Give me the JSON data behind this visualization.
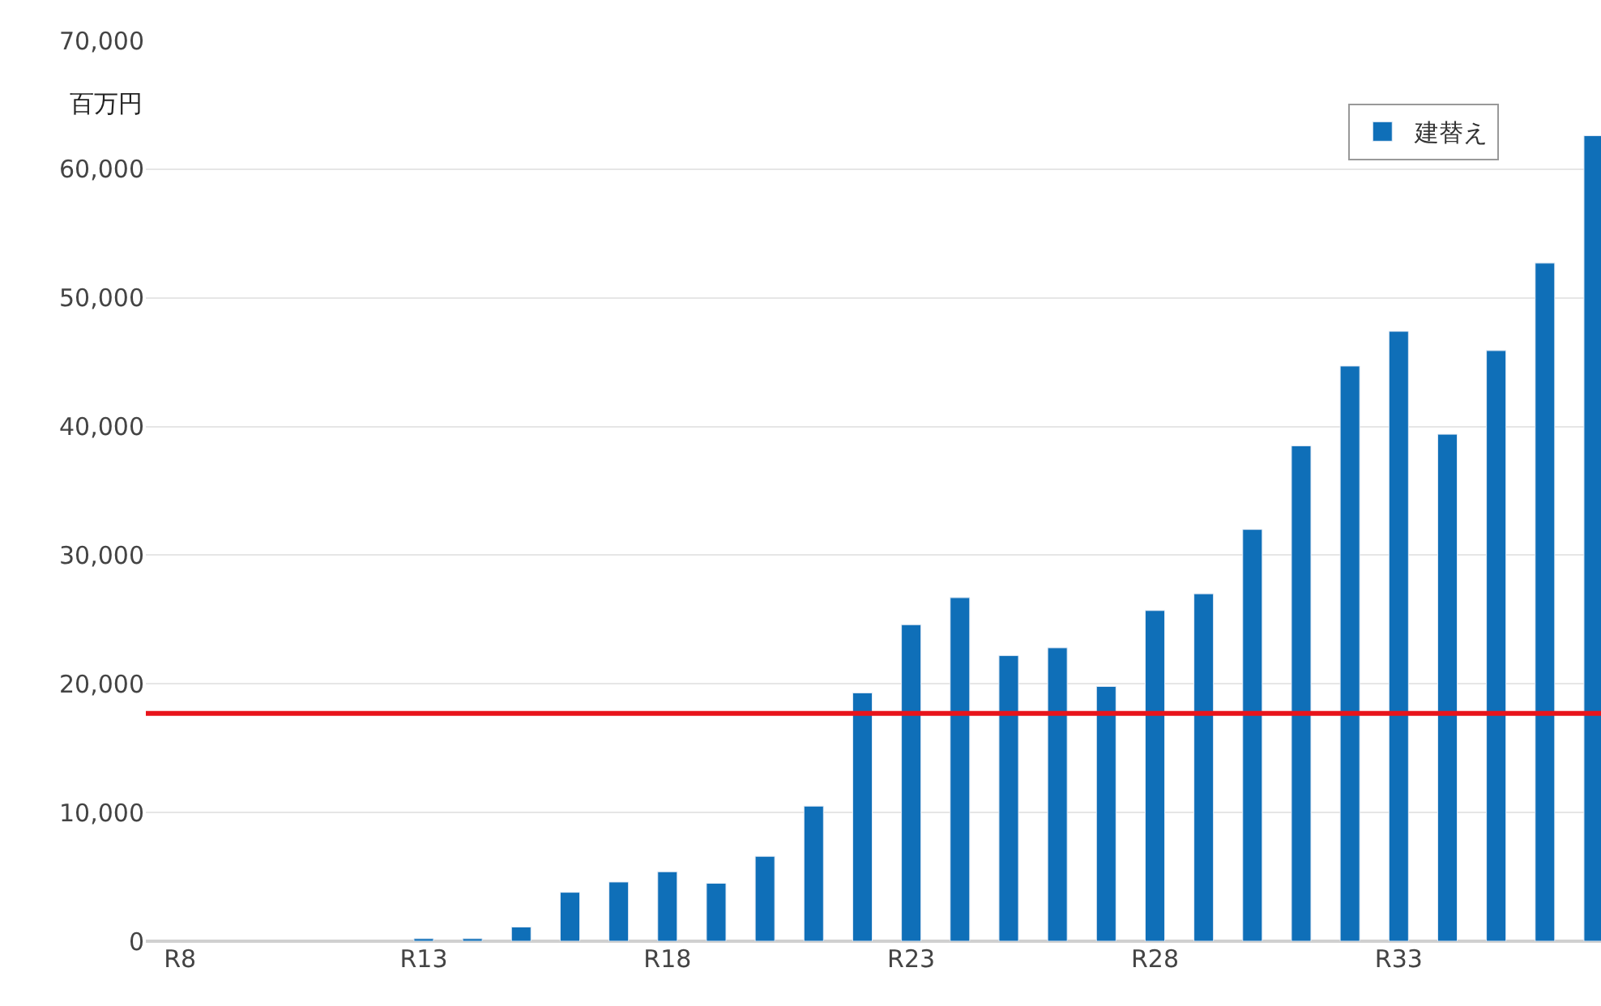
{
  "chart_data": {
    "type": "bar",
    "ylabel": "百万円",
    "categories": [
      "R8",
      null,
      null,
      null,
      null,
      "R13",
      null,
      null,
      null,
      null,
      "R18",
      null,
      null,
      null,
      null,
      "R23",
      null,
      null,
      null,
      null,
      "R28",
      null,
      null,
      null,
      null,
      "R33",
      null,
      null,
      null,
      null
    ],
    "series": [
      {
        "name": "建替え",
        "color": "#0f6fb8",
        "values": [
          null,
          null,
          null,
          null,
          null,
          200,
          200,
          1100,
          3800,
          4600,
          5400,
          4500,
          6600,
          10500,
          19300,
          24600,
          26700,
          22200,
          22800,
          19800,
          25700,
          27000,
          32000,
          38500,
          44700,
          47400,
          39400,
          45900,
          52700,
          62600
        ]
      }
    ],
    "ylim": [
      0,
      70000
    ],
    "yticks": [
      0,
      {
        "value": 10000,
        "label": "10,000"
      },
      {
        "value": 20000,
        "label": "20,000"
      },
      {
        "value": 30000,
        "label": "30,000"
      },
      {
        "value": 40000,
        "label": "40,000"
      },
      {
        "value": 50000,
        "label": "50,000"
      },
      {
        "value": 60000,
        "label": "60,000"
      },
      {
        "value": 70000,
        "label": "70,000"
      }
    ],
    "ref_lines": [
      {
        "axis": "y",
        "value": 17700,
        "color": "#e8141b"
      }
    ],
    "grid": "y",
    "legend": "top right"
  }
}
